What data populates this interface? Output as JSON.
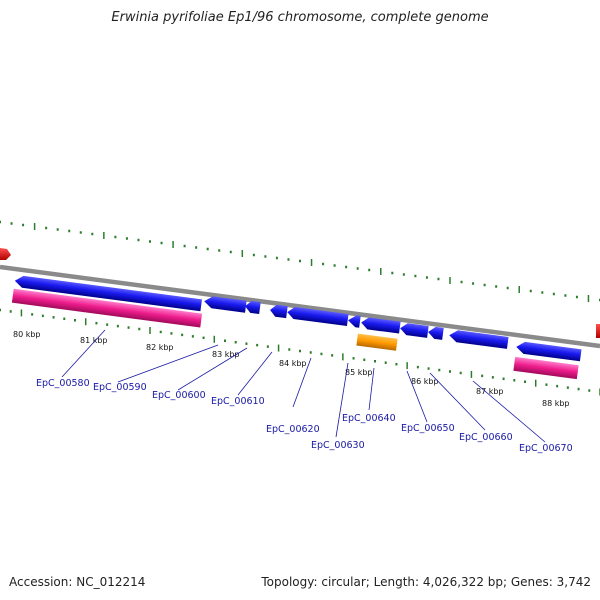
{
  "title": "Erwinia pyrifoliae Ep1/96 chromosome, complete genome",
  "footer": {
    "accession": "Accession: NC_012214",
    "topology": "Topology: circular; Length: 4,026,322 bp; Genes: 3,742"
  },
  "scale_labels": [
    "80 kbp",
    "81 kbp",
    "82 kbp",
    "83 kbp",
    "84 kbp",
    "85 kbp",
    "86 kbp",
    "87 kbp",
    "88 kbp"
  ],
  "gene_labels": [
    "EpC_00580",
    "EpC_00590",
    "EpC_00600",
    "EpC_00610",
    "EpC_00620",
    "EpC_00630",
    "EpC_00640",
    "EpC_00650",
    "EpC_00660",
    "EpC_00670"
  ],
  "colors": {
    "backbone": "#8a8a8a",
    "cds": "#1010e0",
    "rrna": "#ee1c8c",
    "trna": "#ff9900",
    "edge_feature": "#ee0000",
    "ticks": "#2e7d2e",
    "label_line": "#1a1aa6"
  }
}
